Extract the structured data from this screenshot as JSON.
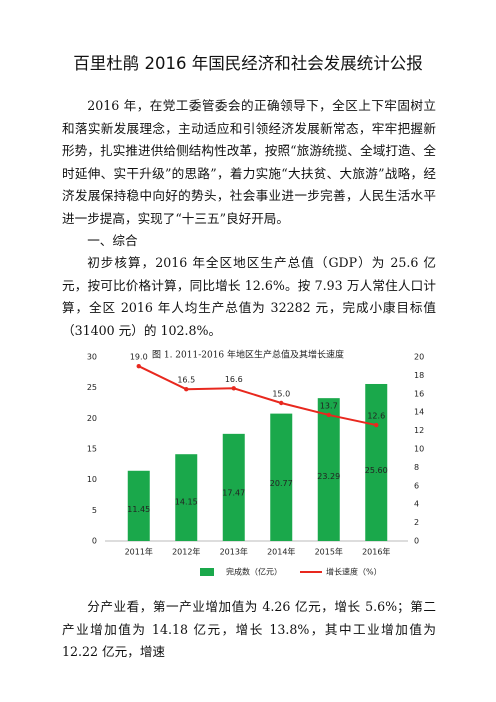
{
  "title": "百里杜鹃 2016 年国民经济和社会发展统计公报",
  "paragraphs": [
    "2016 年，在党工委管委会的正确领导下，全区上下牢固树立和落实新发展理念，主动适应和引领经济发展新常态，牢牢把握新形势，扎实推进供给侧结构性改革，按照“旅游统揽、全域打造、全时延伸、实干升级”的思路”，着力实施“大扶贫、大旅游”战略，经济发展保持稳中向好的势头，社会事业进一步完善，人民生活水平进一步提高，实现了“十三五”良好开局。"
  ],
  "section_heading": "一、综合",
  "section_paragraphs": [
    "初步核算，2016 年全区地区生产总值（GDP）为 25.6 亿元，按可比价格计算，同比增长 12.6%。按 7.93 万人常住人口计算，全区 2016 年人均生产总值为 32282 元，完成小康目标值（31400 元）的 102.8%。"
  ],
  "chart_data": {
    "type": "bar",
    "title": "图 1.    2011-2016 年地区生产总值及其增长速度",
    "categories": [
      "2011年",
      "2012年",
      "2013年",
      "2014年",
      "2015年",
      "2016年"
    ],
    "series": [
      {
        "name": "完成数（亿元）",
        "type": "bar",
        "color": "#1aa84b",
        "values": [
          11.45,
          14.15,
          17.47,
          20.77,
          23.29,
          25.6
        ],
        "value_labels": [
          "11.45",
          "14.15",
          "17.47",
          "20.77",
          "23.29",
          "25.60"
        ]
      },
      {
        "name": "增长速度（%）",
        "type": "line",
        "axis": "y2",
        "color": "#e8281e",
        "values": [
          19.0,
          16.5,
          16.6,
          15.0,
          13.7,
          12.6
        ],
        "value_labels": [
          "19.0",
          "16.5",
          "16.6",
          "15.0",
          "13.7",
          "12.6"
        ]
      }
    ],
    "ylim": [
      0,
      30
    ],
    "yticks": [
      0,
      5,
      10,
      15,
      20,
      25,
      30
    ],
    "y2lim": [
      0,
      20
    ],
    "y2ticks": [
      0,
      2,
      4,
      6,
      8,
      10,
      12,
      14,
      16,
      18,
      20
    ],
    "legend": "bottom"
  },
  "closing_paragraphs": [
    "分产业看，第一产业增加值为 4.26 亿元，增长 5.6%；第二产业增加值为 14.18 亿元，增长 13.8%，其中工业增加值为 12.22 亿元，增速"
  ]
}
